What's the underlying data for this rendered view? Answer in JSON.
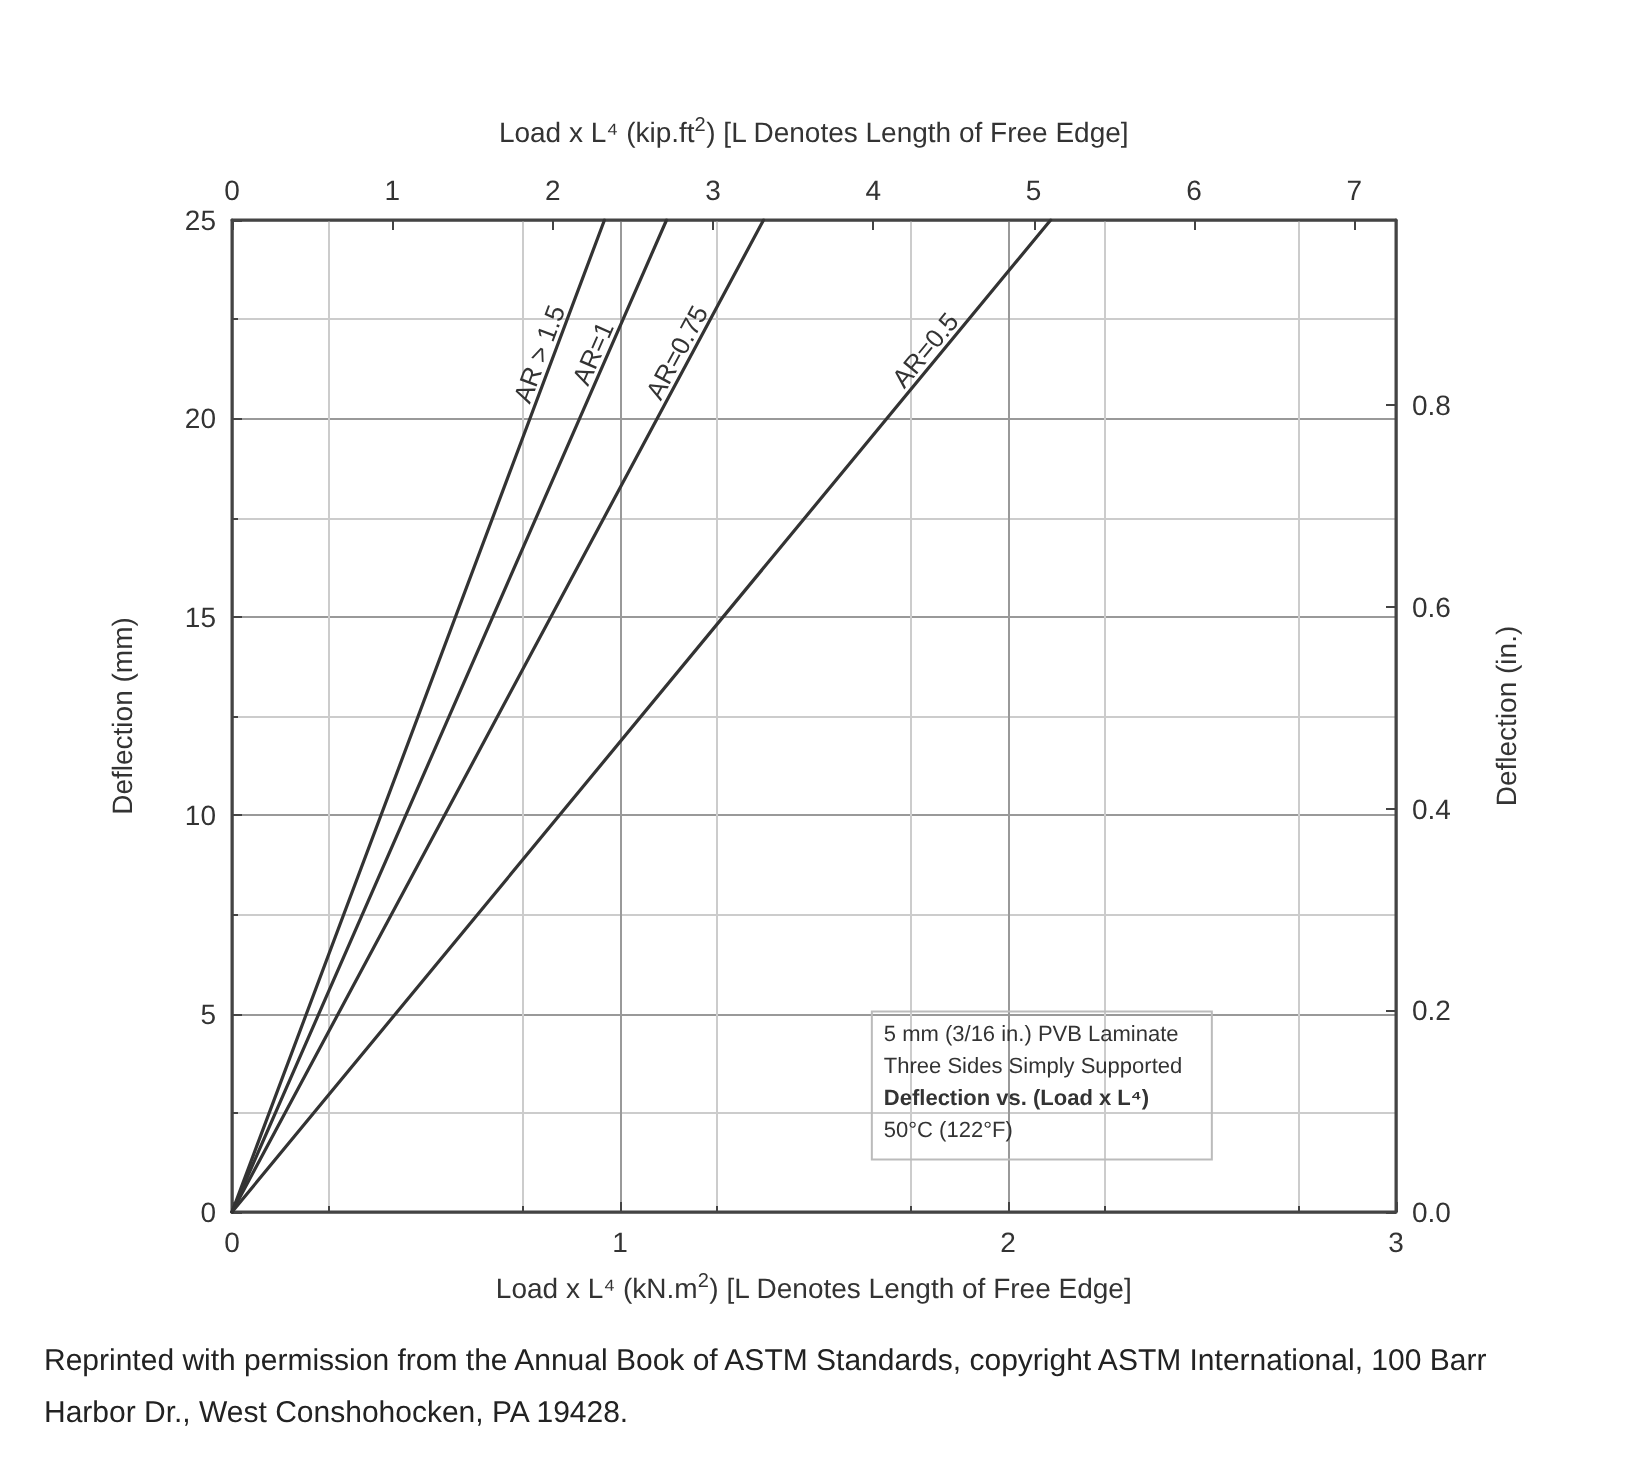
{
  "chart_data": {
    "type": "line",
    "xlabel": "Load x L⁴ (kN.m$^{2}$) [L Denotes Length of Free Edge]",
    "x2label": "Load x L⁴ (kip.ft$^{2}$) [L Denotes Length of Free Edge]",
    "ylabel": "Deflection (mm)",
    "y2label": "Deflection (in.)",
    "xlim": [
      0,
      3
    ],
    "xticks": [
      0,
      1,
      2,
      3
    ],
    "x2lim": [
      0,
      7.26
    ],
    "x2ticks": [
      0,
      1,
      2,
      3,
      4,
      5,
      6,
      7
    ],
    "ylim": [
      0,
      25
    ],
    "yticks": [
      0,
      5,
      10,
      15,
      20,
      25
    ],
    "y2lim": [
      0,
      0.984
    ],
    "y2ticks": [
      "0.0",
      0.2,
      0.4,
      0.6,
      0.8
    ],
    "grid": true,
    "legend": false,
    "marker": "none",
    "line_style": "solid",
    "series": [
      {
        "name": "AR > 1.5",
        "color": "#333333",
        "x": [
          0,
          0.96
        ],
        "values": [
          0,
          25
        ]
      },
      {
        "name": "AR=1",
        "color": "#333333",
        "x": [
          0,
          1.12
        ],
        "values": [
          0,
          25
        ]
      },
      {
        "name": "AR=0.75",
        "color": "#333333",
        "x": [
          0,
          1.37
        ],
        "values": [
          0,
          25
        ]
      },
      {
        "name": "AR=0.5",
        "color": "#333333",
        "x": [
          0,
          2.11
        ],
        "values": [
          0,
          25
        ]
      }
    ],
    "annotations": [
      "5 mm (3/16 in.) PVB Laminate",
      "Three Sides Simply Supported",
      "Deflection vs. (Load x L⁴)",
      "50°C (122°F)",
      "Reprinted with permission from the Annual Book of ASTM Standards, copyright ASTM International, 100 Barr Harbor Dr., West Conshohocken, PA 19428."
    ]
  }
}
